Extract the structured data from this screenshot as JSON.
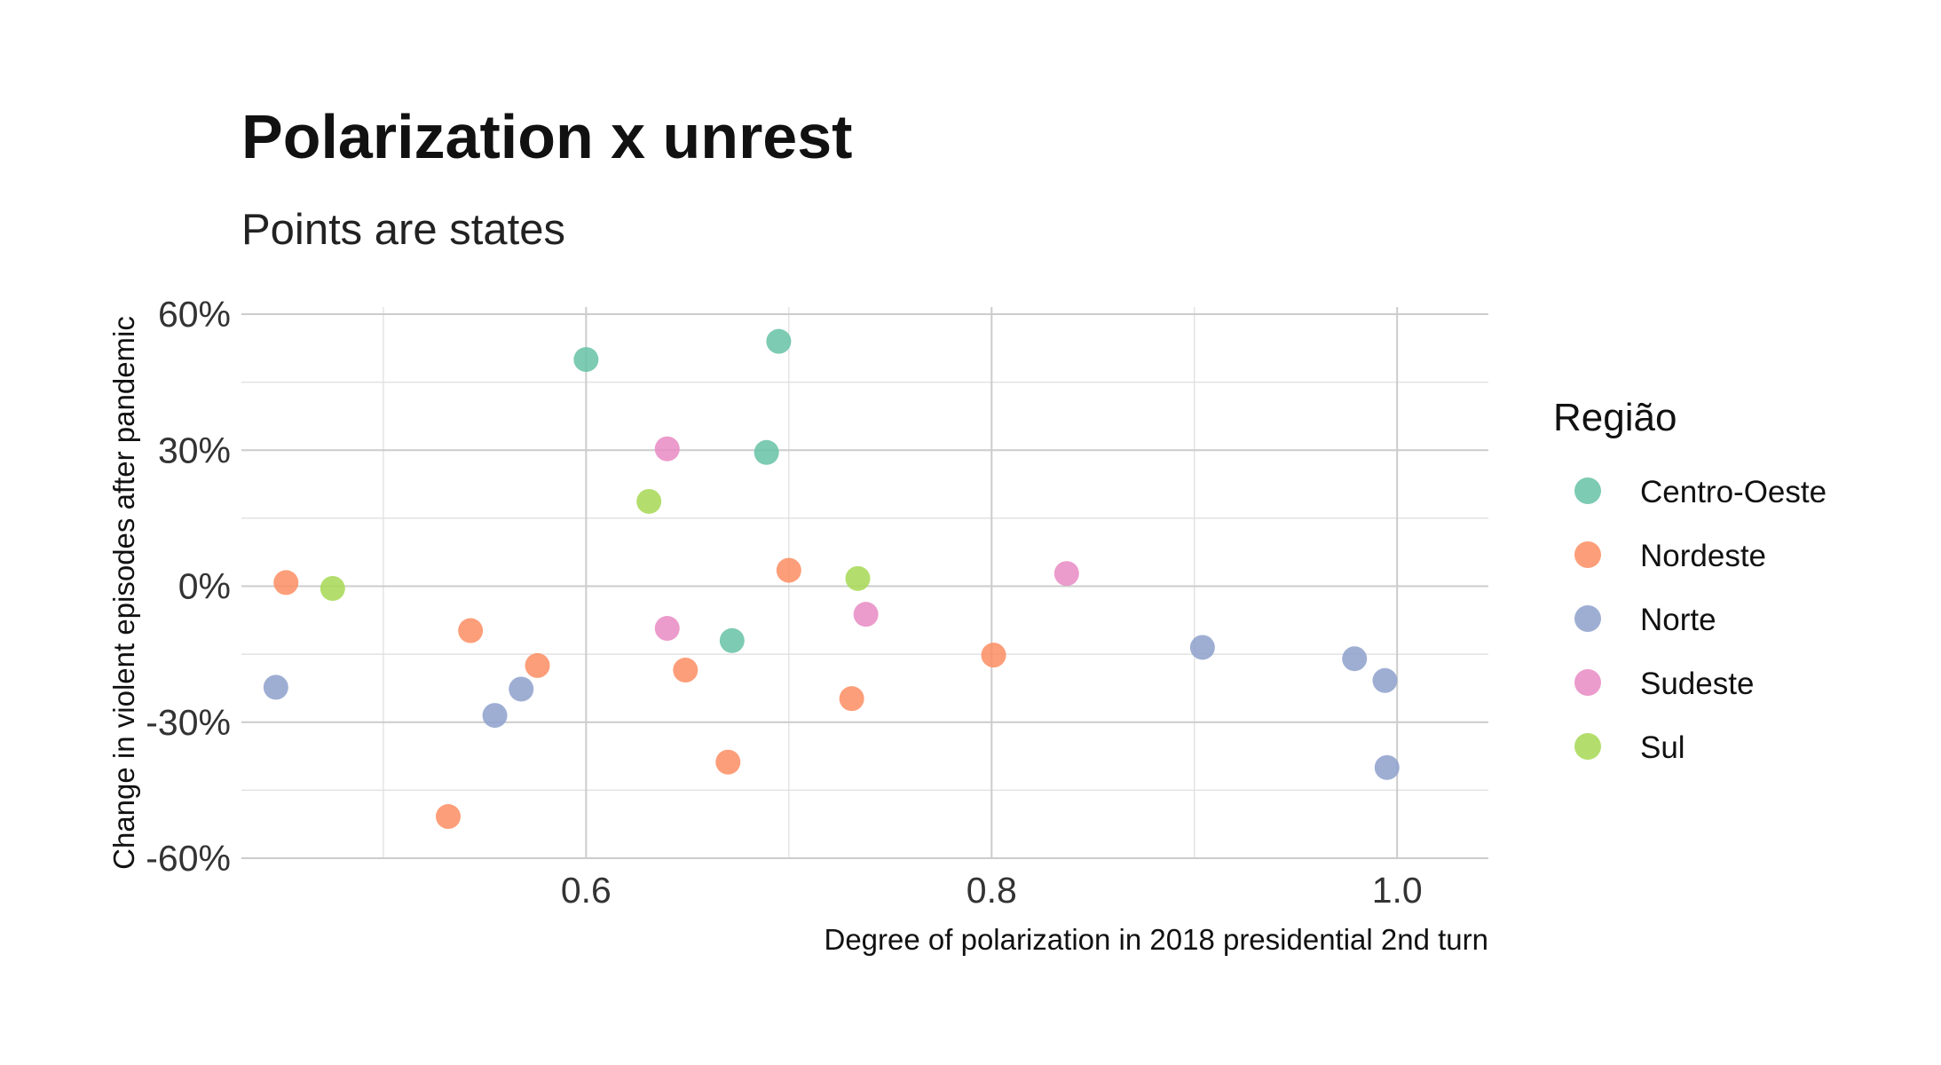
{
  "chart_data": {
    "type": "scatter",
    "title": "Polarization x unrest",
    "subtitle": "Points are states",
    "xlabel": "Degree of polarization in 2018 presidential 2nd turn",
    "ylabel": "Change in violent episodes after pandemic",
    "xlim": [
      0.43,
      1.045
    ],
    "ylim": [
      -0.6,
      0.6
    ],
    "x_ticks": [
      0.6,
      0.8,
      1.0
    ],
    "x_tick_labels": [
      "0.6",
      "0.8",
      "1.0"
    ],
    "x_minor_ticks": [
      0.5,
      0.7,
      0.9
    ],
    "y_ticks": [
      -0.6,
      -0.3,
      0.0,
      0.3,
      0.6
    ],
    "y_tick_labels": [
      "-60%",
      "-30%",
      "0%",
      "30%",
      "60%"
    ],
    "y_minor_ticks": [
      -0.45,
      -0.15,
      0.15,
      0.45
    ],
    "grid": true,
    "legend": {
      "title": "Região",
      "position": "right"
    },
    "series": [
      {
        "name": "Centro-Oeste",
        "color": "#66c2a5",
        "points": [
          {
            "x": 0.6,
            "y": 0.5
          },
          {
            "x": 0.695,
            "y": 0.54
          },
          {
            "x": 0.689,
            "y": 0.295
          },
          {
            "x": 0.672,
            "y": -0.12
          }
        ]
      },
      {
        "name": "Nordeste",
        "color": "#fc8d62",
        "points": [
          {
            "x": 0.452,
            "y": 0.008
          },
          {
            "x": 0.543,
            "y": -0.098
          },
          {
            "x": 0.576,
            "y": -0.175
          },
          {
            "x": 0.649,
            "y": -0.185
          },
          {
            "x": 0.7,
            "y": 0.035
          },
          {
            "x": 0.731,
            "y": -0.248
          },
          {
            "x": 0.67,
            "y": -0.388
          },
          {
            "x": 0.532,
            "y": -0.508
          },
          {
            "x": 0.801,
            "y": -0.152
          }
        ]
      },
      {
        "name": "Norte",
        "color": "#8da0cb",
        "points": [
          {
            "x": 0.447,
            "y": -0.223
          },
          {
            "x": 0.555,
            "y": -0.285
          },
          {
            "x": 0.568,
            "y": -0.227
          },
          {
            "x": 0.904,
            "y": -0.135
          },
          {
            "x": 0.979,
            "y": -0.16
          },
          {
            "x": 0.994,
            "y": -0.208
          },
          {
            "x": 0.995,
            "y": -0.4
          }
        ]
      },
      {
        "name": "Sudeste",
        "color": "#e78ac3",
        "points": [
          {
            "x": 0.64,
            "y": 0.303
          },
          {
            "x": 0.64,
            "y": -0.093
          },
          {
            "x": 0.738,
            "y": -0.062
          },
          {
            "x": 0.837,
            "y": 0.028
          }
        ]
      },
      {
        "name": "Sul",
        "color": "#a6d854",
        "points": [
          {
            "x": 0.475,
            "y": -0.005
          },
          {
            "x": 0.631,
            "y": 0.187
          },
          {
            "x": 0.734,
            "y": 0.017
          }
        ]
      }
    ]
  }
}
